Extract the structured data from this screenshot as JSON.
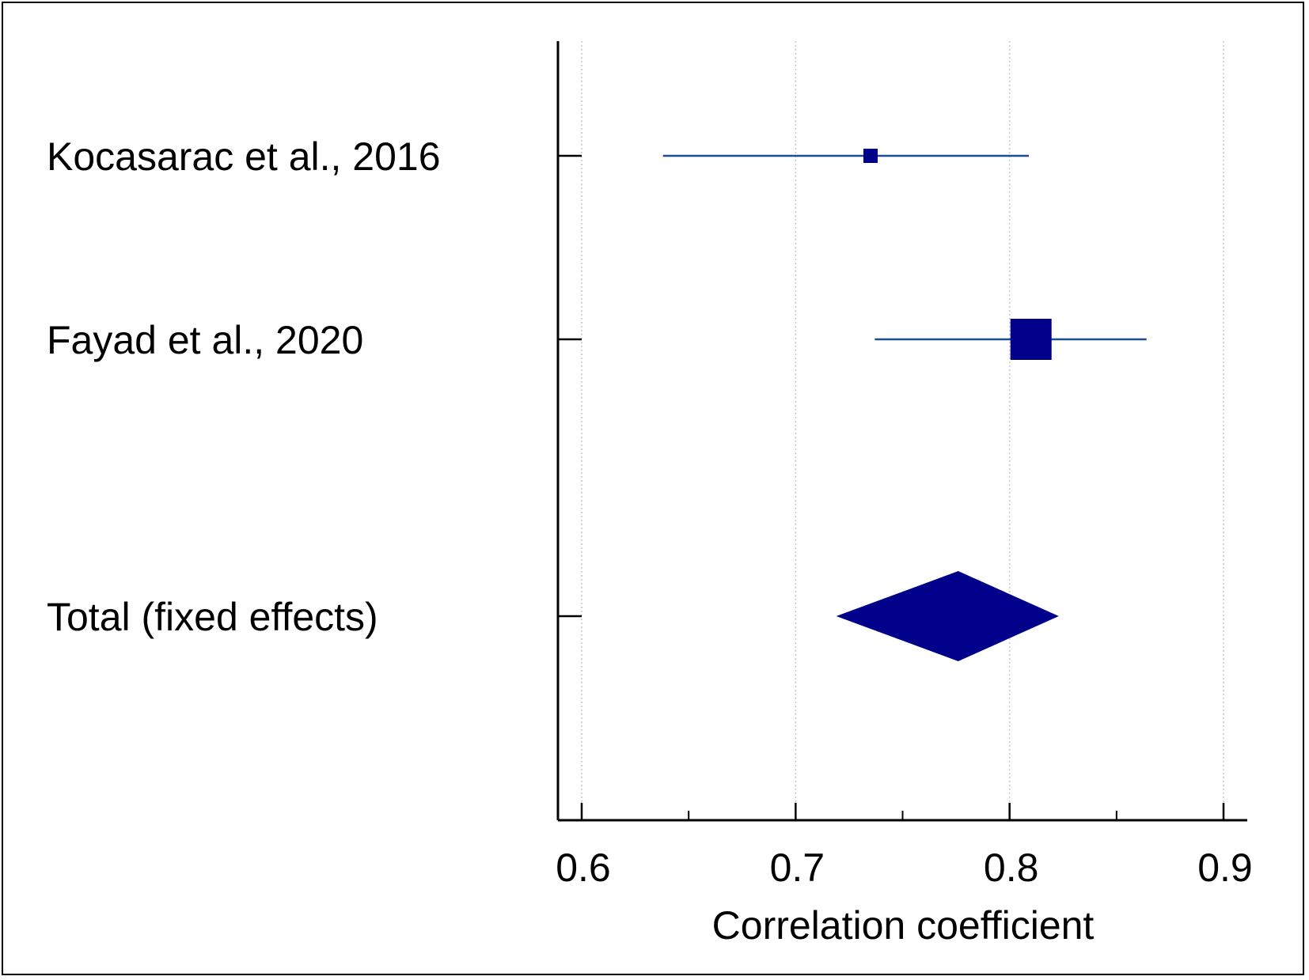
{
  "chart_data": {
    "type": "forest",
    "xlabel": "Correlation coefficient",
    "xlim": [
      0.59,
      0.91
    ],
    "xticks": [
      0.6,
      0.7,
      0.8,
      0.9
    ],
    "xtick_labels": [
      "0.6",
      "0.7",
      "0.8",
      "0.9"
    ],
    "minor_xticks": [
      0.65,
      0.75,
      0.85
    ],
    "grid": "vertical-dotted",
    "colors": {
      "marker": "#00008b",
      "ci_line": "#1f4e8c",
      "axis": "#000000"
    },
    "studies": [
      {
        "label": "Kocasarac et al., 2016",
        "estimate": 0.735,
        "ci_low": 0.638,
        "ci_high": 0.809,
        "weight": "small"
      },
      {
        "label": "Fayad et al., 2020",
        "estimate": 0.81,
        "ci_low": 0.737,
        "ci_high": 0.864,
        "weight": "large"
      }
    ],
    "pooled": {
      "label": "Total (fixed effects)",
      "estimate": 0.776,
      "ci_low": 0.719,
      "ci_high": 0.823
    }
  }
}
